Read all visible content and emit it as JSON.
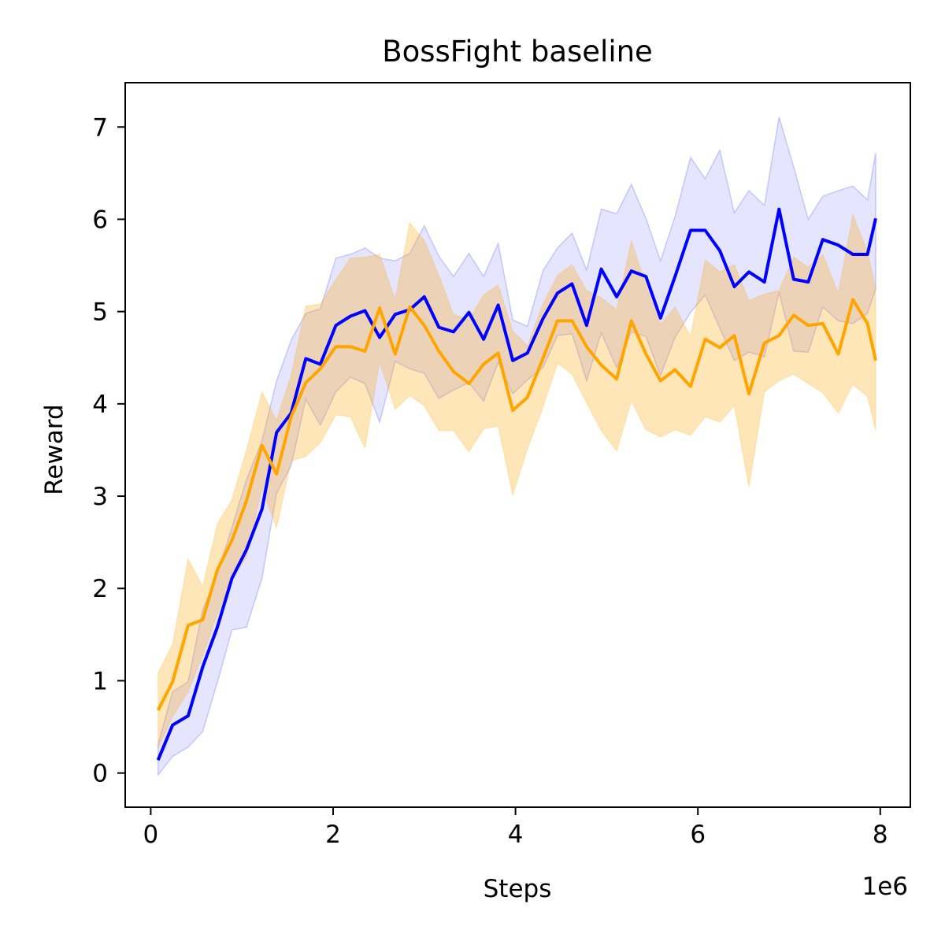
{
  "chart_data": {
    "type": "line",
    "title": "BossFight baseline",
    "xlabel": "Steps",
    "ylabel": "Reward",
    "x_offset_label": "1e6",
    "xlim": [
      -0.28,
      8.33
    ],
    "ylim": [
      -0.37,
      7.48
    ],
    "xticks": [
      0,
      2,
      4,
      6,
      8
    ],
    "xtick_labels": [
      "0",
      "2",
      "4",
      "6",
      "8"
    ],
    "yticks": [
      0,
      1,
      2,
      3,
      4,
      5,
      6,
      7
    ],
    "ytick_labels": [
      "0",
      "1",
      "2",
      "3",
      "4",
      "5",
      "6",
      "7"
    ],
    "grid": false,
    "x": [
      0.08,
      0.24,
      0.41,
      0.57,
      0.73,
      0.89,
      1.05,
      1.22,
      1.38,
      1.54,
      1.7,
      1.86,
      2.03,
      2.19,
      2.35,
      2.51,
      2.68,
      2.84,
      3.0,
      3.16,
      3.32,
      3.49,
      3.65,
      3.81,
      3.97,
      4.13,
      4.3,
      4.46,
      4.62,
      4.78,
      4.94,
      5.11,
      5.27,
      5.43,
      5.59,
      5.75,
      5.92,
      6.08,
      6.24,
      6.4,
      6.56,
      6.73,
      6.89,
      7.05,
      7.21,
      7.37,
      7.54,
      7.7,
      7.86,
      7.95
    ],
    "series": [
      {
        "color": "#0000ff",
        "band_color": "#0000ff",
        "values": [
          0.14,
          0.52,
          0.62,
          1.15,
          1.58,
          2.11,
          2.42,
          2.86,
          3.69,
          3.9,
          4.49,
          4.43,
          4.85,
          4.95,
          5.01,
          4.72,
          4.97,
          5.02,
          5.16,
          4.83,
          4.78,
          4.99,
          4.7,
          5.07,
          4.47,
          4.55,
          4.92,
          5.2,
          5.3,
          4.85,
          5.46,
          5.16,
          5.44,
          5.38,
          4.93,
          5.38,
          5.88,
          5.88,
          5.66,
          5.27,
          5.43,
          5.32,
          6.11,
          5.35,
          5.32,
          5.78,
          5.72,
          5.62,
          5.62,
          6.01
        ],
        "lower": [
          -0.02,
          0.18,
          0.28,
          0.45,
          0.98,
          1.55,
          1.58,
          2.11,
          3.03,
          3.33,
          4.05,
          3.77,
          4.13,
          4.29,
          4.22,
          3.8,
          4.46,
          4.38,
          4.33,
          4.06,
          4.15,
          4.23,
          4.03,
          4.45,
          4.11,
          4.26,
          4.39,
          4.74,
          4.76,
          4.25,
          4.77,
          4.39,
          4.78,
          4.73,
          4.31,
          4.72,
          4.99,
          5.18,
          4.82,
          4.47,
          4.56,
          4.51,
          5.21,
          4.57,
          4.56,
          5.05,
          4.9,
          4.87,
          4.98,
          5.25
        ],
        "upper": [
          0.31,
          0.88,
          0.99,
          1.77,
          2.16,
          2.66,
          3.18,
          3.6,
          4.25,
          4.69,
          4.98,
          5.03,
          5.58,
          5.62,
          5.69,
          5.58,
          5.55,
          5.63,
          5.93,
          5.6,
          5.38,
          5.63,
          5.38,
          5.74,
          4.91,
          4.84,
          5.44,
          5.69,
          5.85,
          5.45,
          6.11,
          6.06,
          6.38,
          6.01,
          5.55,
          6.03,
          6.67,
          6.44,
          6.75,
          6.07,
          6.31,
          6.15,
          7.11,
          6.57,
          6.0,
          6.25,
          6.31,
          6.36,
          6.21,
          6.72
        ]
      },
      {
        "color": "#ffa500",
        "band_color": "#ffa500",
        "values": [
          0.68,
          0.99,
          1.6,
          1.66,
          2.2,
          2.52,
          2.95,
          3.55,
          3.24,
          3.86,
          4.23,
          4.38,
          4.62,
          4.62,
          4.57,
          5.04,
          4.54,
          5.05,
          4.85,
          4.57,
          4.35,
          4.22,
          4.43,
          4.55,
          3.93,
          4.07,
          4.49,
          4.9,
          4.9,
          4.62,
          4.42,
          4.27,
          4.9,
          4.54,
          4.25,
          4.37,
          4.19,
          4.7,
          4.61,
          4.74,
          4.11,
          4.66,
          4.74,
          4.96,
          4.85,
          4.87,
          4.54,
          5.13,
          4.87,
          4.47
        ],
        "lower": [
          0.27,
          0.61,
          0.88,
          1.27,
          1.72,
          2.1,
          2.34,
          3.08,
          2.66,
          3.38,
          3.43,
          3.58,
          3.88,
          3.86,
          3.52,
          4.45,
          3.94,
          4.09,
          3.98,
          3.71,
          3.71,
          3.48,
          3.73,
          3.76,
          3.01,
          3.51,
          3.96,
          4.44,
          4.32,
          4.01,
          3.71,
          3.49,
          4.03,
          3.72,
          3.64,
          3.72,
          3.66,
          3.86,
          3.8,
          3.98,
          3.1,
          4.13,
          4.25,
          4.32,
          4.22,
          4.12,
          3.9,
          4.21,
          4.08,
          3.71
        ],
        "upper": [
          1.08,
          1.4,
          2.32,
          2.02,
          2.7,
          2.96,
          3.5,
          4.13,
          3.82,
          4.31,
          5.06,
          5.08,
          5.35,
          5.58,
          5.59,
          5.62,
          5.13,
          5.96,
          5.77,
          5.39,
          4.97,
          4.91,
          5.18,
          5.29,
          4.79,
          4.63,
          5.08,
          5.39,
          5.51,
          5.23,
          5.15,
          5.02,
          5.77,
          5.28,
          4.86,
          5.05,
          4.73,
          5.56,
          5.43,
          5.51,
          5.12,
          5.19,
          5.23,
          5.59,
          5.48,
          5.62,
          5.2,
          6.05,
          5.65,
          5.25
        ]
      }
    ]
  }
}
